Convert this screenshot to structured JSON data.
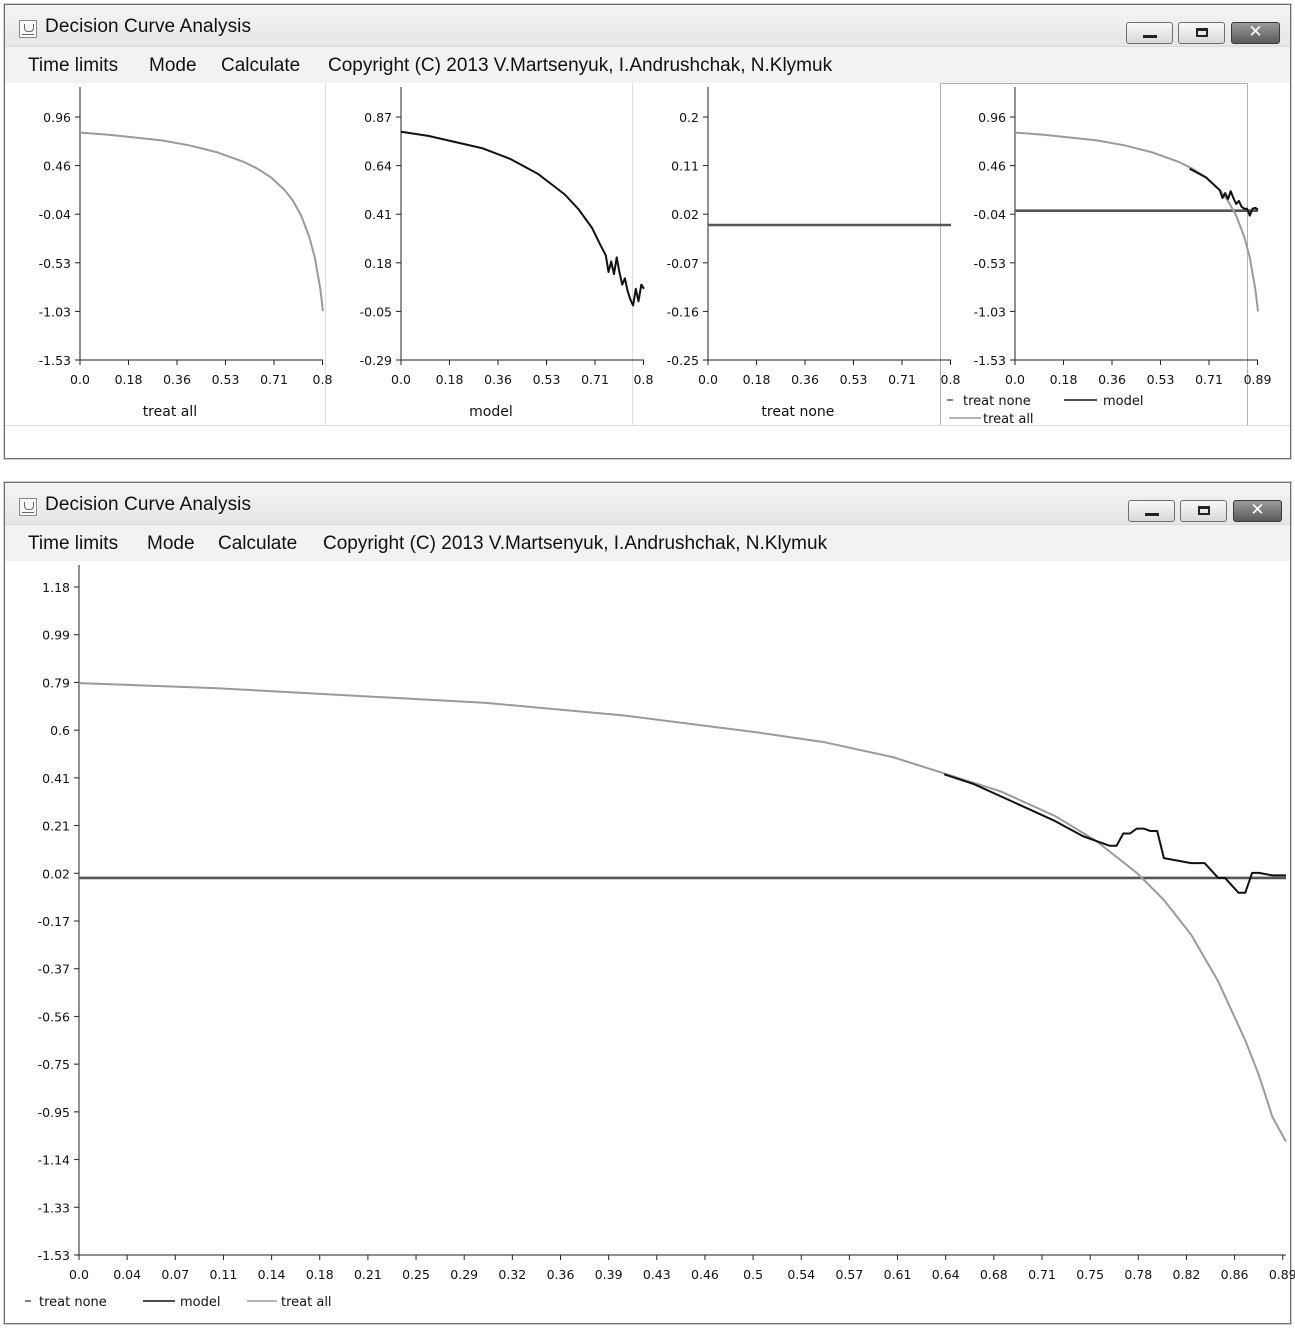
{
  "window_title": "Decision Curve Analysis",
  "menu": [
    "Time limits",
    "Mode",
    "Calculate",
    "Copyright (C) 2013 V.Martsenyuk, I.Andrushchak, N.Klymuk"
  ],
  "window_controls": {
    "minimize": "minimize-icon",
    "maximize": "maximize-icon",
    "close": "✕"
  },
  "legend": {
    "treat_none": "treat none",
    "model": "model",
    "treat_all": "treat all"
  },
  "colors": {
    "treat_none": "#555555",
    "model": "#111111",
    "treat_all": "#9a9a9a",
    "axis": "#222222"
  },
  "chart_data": [
    {
      "type": "line",
      "xlabel": "treat all",
      "yticks": [
        "0.96",
        "0.46",
        "-0.04",
        "-0.53",
        "-1.03",
        "-1.53"
      ],
      "xticks": [
        "0.0",
        "0.18",
        "0.36",
        "0.53",
        "0.71",
        "0.8"
      ],
      "xlim": [
        0,
        0.89
      ],
      "ylim": [
        -1.53,
        1.2
      ],
      "series": [
        {
          "name": "treat all",
          "x": [
            0,
            0.1,
            0.2,
            0.3,
            0.4,
            0.5,
            0.6,
            0.65,
            0.7,
            0.75,
            0.78,
            0.81,
            0.84,
            0.86,
            0.88,
            0.89
          ],
          "y": [
            0.8,
            0.78,
            0.75,
            0.72,
            0.67,
            0.6,
            0.5,
            0.43,
            0.34,
            0.21,
            0.1,
            -0.05,
            -0.27,
            -0.48,
            -0.8,
            -1.03
          ]
        }
      ]
    },
    {
      "type": "line",
      "xlabel": "model",
      "yticks": [
        "0.87",
        "0.64",
        "0.41",
        "0.18",
        "-0.05",
        "-0.29"
      ],
      "xticks": [
        "0.0",
        "0.18",
        "0.36",
        "0.53",
        "0.71",
        "0.8"
      ],
      "xlim": [
        0,
        0.89
      ],
      "ylim": [
        -0.29,
        0.99
      ],
      "series": [
        {
          "name": "model",
          "x": [
            0,
            0.1,
            0.2,
            0.3,
            0.4,
            0.5,
            0.55,
            0.6,
            0.65,
            0.7,
            0.73,
            0.75,
            0.76,
            0.77,
            0.78,
            0.79,
            0.8,
            0.81,
            0.82,
            0.83,
            0.84,
            0.85,
            0.86,
            0.87,
            0.88,
            0.89
          ],
          "y": [
            0.8,
            0.78,
            0.75,
            0.72,
            0.67,
            0.6,
            0.55,
            0.5,
            0.43,
            0.34,
            0.26,
            0.21,
            0.13,
            0.18,
            0.12,
            0.2,
            0.13,
            0.07,
            0.1,
            0.04,
            0.0,
            -0.03,
            0.05,
            -0.01,
            0.07,
            0.05
          ]
        }
      ]
    },
    {
      "type": "line",
      "xlabel": "treat none",
      "yticks": [
        "0.2",
        "0.11",
        "0.02",
        "-0.07",
        "-0.16",
        "-0.25"
      ],
      "xticks": [
        "0.0",
        "0.18",
        "0.36",
        "0.53",
        "0.71",
        "0.8"
      ],
      "xlim": [
        0,
        0.89
      ],
      "ylim": [
        -0.25,
        0.25
      ],
      "series": [
        {
          "name": "treat none",
          "x": [
            0,
            0.89
          ],
          "y": [
            0,
            0
          ]
        }
      ]
    },
    {
      "type": "line",
      "yticks": [
        "0.96",
        "0.46",
        "-0.04",
        "-0.53",
        "-1.03",
        "-1.53"
      ],
      "xticks": [
        "0.0",
        "0.18",
        "0.36",
        "0.53",
        "0.71",
        "0.89"
      ],
      "xlim": [
        0,
        0.89
      ],
      "ylim": [
        -1.53,
        1.2
      ],
      "series": [
        {
          "name": "treat none",
          "x": [
            0,
            0.89
          ],
          "y": [
            0,
            0
          ]
        },
        {
          "name": "model",
          "x": [
            0.64,
            0.7,
            0.75,
            0.76,
            0.77,
            0.78,
            0.79,
            0.8,
            0.81,
            0.82,
            0.83,
            0.84,
            0.85,
            0.86,
            0.87,
            0.88,
            0.89
          ],
          "y": [
            0.43,
            0.34,
            0.21,
            0.13,
            0.18,
            0.12,
            0.2,
            0.13,
            0.07,
            0.1,
            0.04,
            0.02,
            0.02,
            -0.05,
            0.02,
            0.03,
            0.01
          ]
        },
        {
          "name": "treat all",
          "x": [
            0,
            0.1,
            0.2,
            0.3,
            0.4,
            0.5,
            0.6,
            0.65,
            0.7,
            0.75,
            0.78,
            0.81,
            0.84,
            0.86,
            0.88,
            0.89
          ],
          "y": [
            0.8,
            0.78,
            0.75,
            0.72,
            0.67,
            0.6,
            0.5,
            0.43,
            0.34,
            0.21,
            0.1,
            -0.05,
            -0.27,
            -0.48,
            -0.8,
            -1.03
          ]
        }
      ]
    },
    {
      "type": "line",
      "yticks": [
        "1.18",
        "0.99",
        "0.79",
        "0.6",
        "0.41",
        "0.21",
        "0.02",
        "-0.17",
        "-0.37",
        "-0.56",
        "-0.75",
        "-0.95",
        "-1.14",
        "-1.33",
        "-1.53"
      ],
      "xticks": [
        "0.0",
        "0.04",
        "0.07",
        "0.11",
        "0.14",
        "0.18",
        "0.21",
        "0.25",
        "0.29",
        "0.32",
        "0.36",
        "0.39",
        "0.43",
        "0.46",
        "0.5",
        "0.54",
        "0.57",
        "0.61",
        "0.64",
        "0.68",
        "0.71",
        "0.75",
        "0.78",
        "0.82",
        "0.86",
        "0.89"
      ],
      "xlim": [
        0,
        0.89
      ],
      "ylim": [
        -1.53,
        1.18
      ],
      "series": [
        {
          "name": "treat none",
          "x": [
            0,
            0.89
          ],
          "y": [
            0,
            0
          ]
        },
        {
          "name": "model",
          "x": [
            0.638,
            0.66,
            0.68,
            0.7,
            0.72,
            0.74,
            0.75,
            0.76,
            0.765,
            0.77,
            0.775,
            0.78,
            0.785,
            0.79,
            0.795,
            0.8,
            0.82,
            0.83,
            0.84,
            0.845,
            0.855,
            0.86,
            0.865,
            0.87,
            0.88,
            0.89
          ],
          "y": [
            0.42,
            0.38,
            0.33,
            0.28,
            0.23,
            0.17,
            0.15,
            0.13,
            0.13,
            0.18,
            0.18,
            0.2,
            0.2,
            0.19,
            0.19,
            0.08,
            0.06,
            0.06,
            0.0,
            0.0,
            -0.06,
            -0.06,
            0.02,
            0.02,
            0.01,
            0.01
          ]
        },
        {
          "name": "treat all",
          "x": [
            0,
            0.1,
            0.2,
            0.3,
            0.4,
            0.5,
            0.55,
            0.6,
            0.64,
            0.68,
            0.72,
            0.75,
            0.78,
            0.8,
            0.82,
            0.84,
            0.86,
            0.87,
            0.88,
            0.89
          ],
          "y": [
            0.79,
            0.77,
            0.74,
            0.71,
            0.66,
            0.59,
            0.55,
            0.49,
            0.42,
            0.35,
            0.25,
            0.15,
            0.02,
            -0.09,
            -0.23,
            -0.42,
            -0.66,
            -0.8,
            -0.97,
            -1.07
          ]
        }
      ]
    }
  ]
}
